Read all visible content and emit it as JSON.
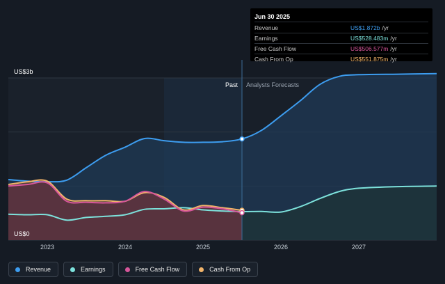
{
  "chart_data": {
    "type": "area",
    "y_axis": {
      "top_label": "US$3b",
      "bottom_label": "US$0",
      "ylim": [
        0,
        3000
      ]
    },
    "x_axis": {
      "ticks": [
        2023,
        2024,
        2025,
        2026,
        2027
      ],
      "xlim": [
        2022.5,
        2028
      ]
    },
    "divider": {
      "x": 2025.5,
      "past_label": "Past",
      "forecast_label": "Analysts Forecasts"
    },
    "series": [
      {
        "name": "Revenue",
        "color": "#3d9df0",
        "fill": "#1f3a55",
        "points": [
          [
            2022.5,
            1120
          ],
          [
            2022.75,
            1090
          ],
          [
            2023.0,
            1080
          ],
          [
            2023.25,
            1110
          ],
          [
            2023.5,
            1340
          ],
          [
            2023.75,
            1570
          ],
          [
            2024.0,
            1720
          ],
          [
            2024.25,
            1880
          ],
          [
            2024.5,
            1840
          ],
          [
            2024.75,
            1810
          ],
          [
            2025.0,
            1810
          ],
          [
            2025.25,
            1820
          ],
          [
            2025.5,
            1872
          ],
          [
            2025.75,
            2030
          ],
          [
            2026.0,
            2300
          ],
          [
            2026.25,
            2580
          ],
          [
            2026.5,
            2880
          ],
          [
            2026.75,
            3030
          ],
          [
            2027.0,
            3060
          ],
          [
            2027.5,
            3070
          ],
          [
            2028.0,
            3080
          ]
        ]
      },
      {
        "name": "Earnings",
        "color": "#7de2dc",
        "fill": "#1e3437",
        "points": [
          [
            2022.5,
            480
          ],
          [
            2022.75,
            470
          ],
          [
            2023.0,
            470
          ],
          [
            2023.25,
            370
          ],
          [
            2023.5,
            420
          ],
          [
            2023.75,
            440
          ],
          [
            2024.0,
            470
          ],
          [
            2024.25,
            570
          ],
          [
            2024.5,
            580
          ],
          [
            2024.75,
            600
          ],
          [
            2025.0,
            560
          ],
          [
            2025.25,
            540
          ],
          [
            2025.5,
            528
          ],
          [
            2025.75,
            530
          ],
          [
            2026.0,
            520
          ],
          [
            2026.25,
            620
          ],
          [
            2026.5,
            770
          ],
          [
            2026.75,
            900
          ],
          [
            2027.0,
            960
          ],
          [
            2027.5,
            990
          ],
          [
            2028.0,
            1000
          ]
        ]
      },
      {
        "name": "Free Cash Flow",
        "color": "#d6569a",
        "fill": "#5a2d40",
        "points": [
          [
            2022.5,
            1000
          ],
          [
            2022.75,
            1030
          ],
          [
            2023.0,
            1060
          ],
          [
            2023.25,
            720
          ],
          [
            2023.5,
            700
          ],
          [
            2023.75,
            690
          ],
          [
            2024.0,
            720
          ],
          [
            2024.25,
            900
          ],
          [
            2024.5,
            760
          ],
          [
            2024.75,
            540
          ],
          [
            2025.0,
            610
          ],
          [
            2025.25,
            580
          ],
          [
            2025.5,
            507
          ]
        ]
      },
      {
        "name": "Cash From Op",
        "color": "#f2b46a",
        "fill": "#6a4a3a",
        "points": [
          [
            2022.5,
            1030
          ],
          [
            2022.75,
            1080
          ],
          [
            2023.0,
            1090
          ],
          [
            2023.25,
            760
          ],
          [
            2023.5,
            730
          ],
          [
            2023.75,
            730
          ],
          [
            2024.0,
            720
          ],
          [
            2024.25,
            880
          ],
          [
            2024.5,
            790
          ],
          [
            2024.75,
            560
          ],
          [
            2025.0,
            640
          ],
          [
            2025.25,
            600
          ],
          [
            2025.5,
            552
          ]
        ]
      }
    ]
  },
  "tooltip": {
    "date": "Jun 30 2025",
    "rows": [
      {
        "label": "Revenue",
        "value": "US$1.872b",
        "unit": "/yr",
        "color": "#3d9df0"
      },
      {
        "label": "Earnings",
        "value": "US$528.483m",
        "unit": "/yr",
        "color": "#7de2dc"
      },
      {
        "label": "Free Cash Flow",
        "value": "US$506.577m",
        "unit": "/yr",
        "color": "#d6569a"
      },
      {
        "label": "Cash From Op",
        "value": "US$551.875m",
        "unit": "/yr",
        "color": "#f2b46a"
      }
    ]
  },
  "legend": [
    {
      "label": "Revenue",
      "color": "#3d9df0"
    },
    {
      "label": "Earnings",
      "color": "#7de2dc"
    },
    {
      "label": "Free Cash Flow",
      "color": "#d6569a"
    },
    {
      "label": "Cash From Op",
      "color": "#f2b46a"
    }
  ]
}
